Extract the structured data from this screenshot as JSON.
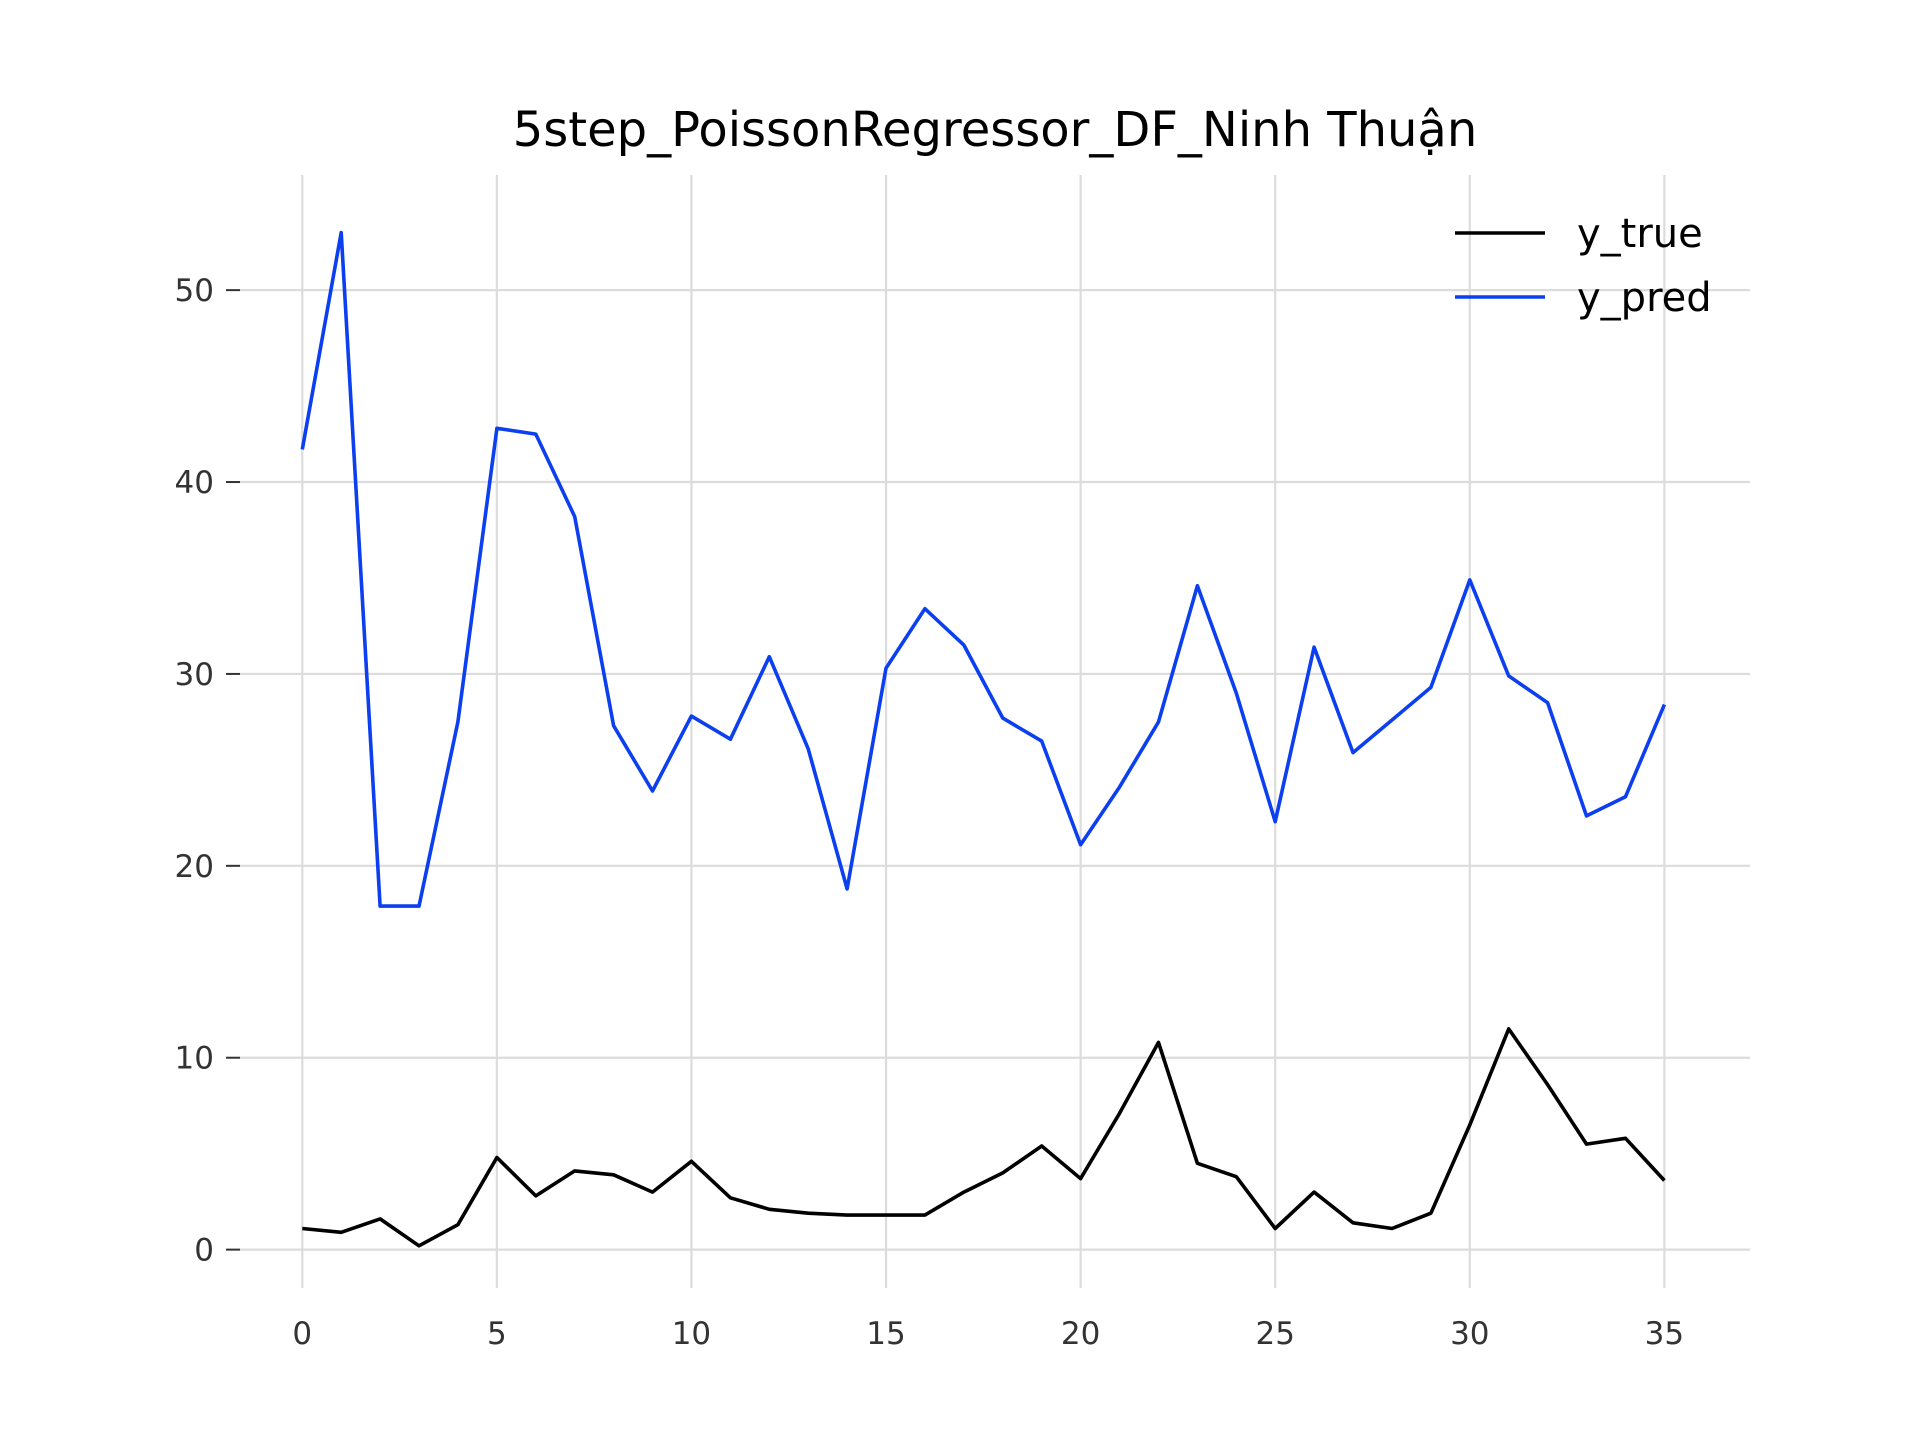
{
  "chart_data": {
    "type": "line",
    "title": "5step_PoissonRegressor_DF_Ninh Thuận",
    "xlabel": "",
    "ylabel": "",
    "xlim": [
      -1.6,
      37.2
    ],
    "ylim": [
      -2.0,
      56.0
    ],
    "x_ticks": [
      0,
      5,
      10,
      15,
      20,
      25,
      30,
      35
    ],
    "y_ticks": [
      0,
      10,
      20,
      30,
      40,
      50
    ],
    "grid": true,
    "legend_position": "top-right",
    "x": [
      0,
      1,
      2,
      3,
      4,
      5,
      6,
      7,
      8,
      9,
      10,
      11,
      12,
      13,
      14,
      15,
      16,
      17,
      18,
      19,
      20,
      21,
      22,
      23,
      24,
      25,
      26,
      27,
      28,
      29,
      30,
      31,
      32,
      33,
      34,
      35
    ],
    "series": [
      {
        "name": "y_true",
        "color": "#000000",
        "values": [
          1.1,
          0.9,
          1.6,
          0.2,
          1.3,
          4.8,
          2.8,
          4.1,
          3.9,
          3.0,
          4.6,
          2.7,
          2.1,
          1.9,
          1.8,
          1.8,
          1.8,
          3.0,
          4.0,
          5.4,
          3.7,
          7.1,
          10.8,
          4.5,
          3.8,
          1.1,
          3.0,
          1.4,
          1.1,
          1.9,
          6.5,
          11.5,
          8.6,
          5.5,
          5.8,
          3.6
        ]
      },
      {
        "name": "y_pred",
        "color": "#0b3ff0",
        "values": [
          41.7,
          53.0,
          17.9,
          17.9,
          27.5,
          42.8,
          42.5,
          38.2,
          27.3,
          23.9,
          27.8,
          26.6,
          30.9,
          26.1,
          18.8,
          30.3,
          33.4,
          31.5,
          27.7,
          26.5,
          21.1,
          24.1,
          27.5,
          34.6,
          29.0,
          22.3,
          31.4,
          25.9,
          27.6,
          29.3,
          34.9,
          29.9,
          28.5,
          22.6,
          23.6,
          28.4
        ]
      }
    ]
  }
}
